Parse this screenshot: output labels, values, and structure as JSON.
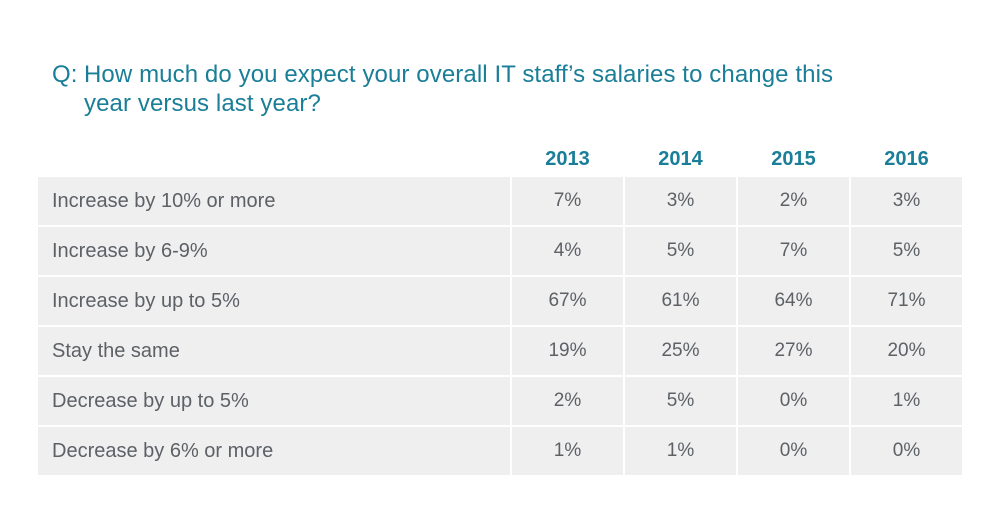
{
  "question": {
    "prefix": "Q:",
    "line1": "How much do you expect your overall IT staff’s salaries to change this",
    "line2": "year versus last year?"
  },
  "chart_data": {
    "type": "table",
    "title": "Q: How much do you expect your overall IT staff’s salaries to change this year versus last year?",
    "columns": [
      "2013",
      "2014",
      "2015",
      "2016"
    ],
    "rows": [
      {
        "label": "Increase by 10% or more",
        "values": [
          "7%",
          "3%",
          "2%",
          "3%"
        ]
      },
      {
        "label": "Increase by 6-9%",
        "values": [
          "4%",
          "5%",
          "7%",
          "5%"
        ]
      },
      {
        "label": "Increase by up to 5%",
        "values": [
          "67%",
          "61%",
          "64%",
          "71%"
        ]
      },
      {
        "label": "Stay the same",
        "values": [
          "19%",
          "25%",
          "27%",
          "20%"
        ]
      },
      {
        "label": "Decrease by up to 5%",
        "values": [
          "2%",
          "5%",
          "0%",
          "1%"
        ]
      },
      {
        "label": "Decrease by 6% or more",
        "values": [
          "1%",
          "1%",
          "0%",
          "0%"
        ]
      }
    ]
  },
  "colors": {
    "accent": "#1a7e98",
    "row_background": "#efefef",
    "text": "#5d6166"
  }
}
